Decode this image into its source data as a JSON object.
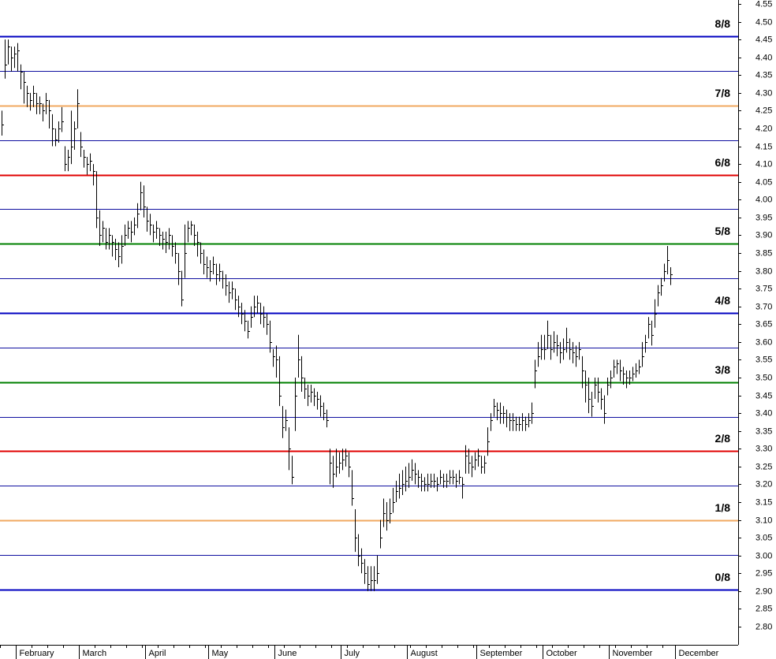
{
  "chart_data": {
    "type": "hlc",
    "color": "#000000",
    "ylim": [
      2.749,
      4.561
    ],
    "yticks": [
      {
        "value": 2.8,
        "label": "2.80"
      },
      2.85,
      {
        "value": 2.9,
        "label": "2.90"
      },
      2.95,
      {
        "value": 3,
        "label": "3.00"
      },
      3.05,
      {
        "value": 3.1,
        "label": "3.10"
      },
      3.15,
      {
        "value": 3.2,
        "label": "3.20"
      },
      3.25,
      {
        "value": 3.3,
        "label": "3.30"
      },
      3.35,
      {
        "value": 3.4,
        "label": "3.40"
      },
      3.45,
      {
        "value": 3.5,
        "label": "3.50"
      },
      3.55,
      {
        "value": 3.6,
        "label": "3.60"
      },
      3.65,
      {
        "value": 3.7,
        "label": "3.70"
      },
      3.75,
      {
        "value": 3.8,
        "label": "3.80"
      },
      3.85,
      {
        "value": 3.9,
        "label": "3.90"
      },
      3.95,
      {
        "value": 4,
        "label": "4.00"
      },
      4.05,
      {
        "value": 4.1,
        "label": "4.10"
      },
      4.15,
      {
        "value": 4.2,
        "label": "4.20"
      },
      4.25,
      {
        "value": 4.3,
        "label": "4.30"
      },
      4.35,
      {
        "value": 4.4,
        "label": "4.40"
      },
      4.45,
      {
        "value": 4.5,
        "label": "4.50"
      },
      4.55
    ],
    "levels": [
      {
        "label": "0/8",
        "value": 2.904,
        "color": "#0000c0"
      },
      {
        "label": "1/8",
        "value": 3.098,
        "color": "#f0a860"
      },
      {
        "label": "2/8",
        "value": 3.293,
        "color": "#e00000"
      },
      {
        "label": "3/8",
        "value": 3.487,
        "color": "#008000"
      },
      {
        "label": "4/8",
        "value": 3.682,
        "color": "#0000c0"
      },
      {
        "label": "5/8",
        "value": 3.876,
        "color": "#008000"
      },
      {
        "label": "6/8",
        "value": 4.07,
        "color": "#e00000"
      },
      {
        "label": "7/8",
        "value": 4.265,
        "color": "#f0a860"
      },
      {
        "label": "8/8",
        "value": 4.459,
        "color": "#0000c0"
      }
    ],
    "minor_levels": [
      3.001,
      3.196,
      3.39,
      3.584,
      3.779,
      3.973,
      4.167,
      4.362
    ],
    "minor_level_color": "#1010a0",
    "categories": [
      null,
      null,
      null,
      null,
      null,
      "February",
      null,
      null,
      null,
      null,
      null,
      null,
      null,
      null,
      null,
      null,
      null,
      null,
      null,
      null,
      null,
      null,
      null,
      null,
      null,
      "March",
      null,
      null,
      null,
      null,
      null,
      null,
      null,
      null,
      null,
      null,
      null,
      null,
      null,
      null,
      null,
      null,
      null,
      null,
      null,
      null,
      "April",
      null,
      null,
      null,
      null,
      null,
      null,
      null,
      null,
      null,
      null,
      null,
      null,
      null,
      null,
      null,
      null,
      null,
      null,
      null,
      "May",
      null,
      null,
      null,
      null,
      null,
      null,
      null,
      null,
      null,
      null,
      null,
      null,
      null,
      null,
      null,
      null,
      null,
      null,
      null,
      null,
      "June",
      null,
      null,
      null,
      null,
      null,
      null,
      null,
      null,
      null,
      null,
      null,
      null,
      null,
      null,
      null,
      null,
      null,
      null,
      null,
      null,
      "July",
      null,
      null,
      null,
      null,
      null,
      null,
      null,
      null,
      null,
      null,
      null,
      null,
      null,
      null,
      null,
      null,
      null,
      null,
      null,
      null,
      "August",
      null,
      null,
      null,
      null,
      null,
      null,
      null,
      null,
      null,
      null,
      null,
      null,
      null,
      null,
      null,
      null,
      null,
      null,
      null,
      null,
      null,
      "September",
      null,
      null,
      null,
      null,
      null,
      null,
      null,
      null,
      null,
      null,
      null,
      null,
      null,
      null,
      null,
      null,
      null,
      null,
      null,
      null,
      "October",
      null,
      null,
      null,
      null,
      null,
      null,
      null,
      null,
      null,
      null,
      null,
      null,
      null,
      null,
      null,
      null,
      null,
      null,
      null,
      null,
      "November",
      null,
      null,
      null,
      null,
      null,
      null,
      null,
      null,
      null,
      null,
      null,
      null,
      null,
      null,
      null,
      null,
      null,
      null,
      null,
      null,
      "December"
    ],
    "high": [
      4.25,
      4.45,
      4.45,
      4.43,
      4.43,
      4.44,
      4.38,
      4.36,
      4.32,
      4.3,
      4.32,
      4.3,
      4.29,
      4.27,
      4.3,
      4.28,
      4.24,
      4.2,
      4.22,
      4.26,
      4.15,
      4.14,
      4.25,
      4.22,
      4.31,
      4.19,
      4.14,
      4.12,
      4.13,
      4.1,
      4.08,
      3.97,
      3.94,
      3.92,
      3.92,
      3.9,
      3.89,
      3.88,
      3.9,
      3.93,
      3.94,
      3.94,
      3.95,
      3.99,
      4.05,
      4.04,
      3.98,
      3.96,
      3.93,
      3.94,
      3.92,
      3.91,
      3.91,
      3.92,
      3.9,
      3.88,
      3.85,
      3.8,
      3.93,
      3.94,
      3.94,
      3.93,
      3.91,
      3.88,
      3.86,
      3.84,
      3.83,
      3.84,
      3.82,
      3.82,
      3.8,
      3.79,
      3.77,
      3.77,
      3.75,
      3.73,
      3.71,
      3.69,
      3.66,
      3.7,
      3.73,
      3.73,
      3.71,
      3.7,
      3.68,
      3.66,
      3.58,
      3.59,
      3.56,
      3.42,
      3.41,
      3.36,
      3.28,
      3.5,
      3.62,
      3.56,
      3.5,
      3.48,
      3.48,
      3.47,
      3.46,
      3.45,
      3.43,
      3.41,
      3.3,
      3.28,
      3.3,
      3.29,
      3.3,
      3.3,
      3.29,
      3.24,
      3.13,
      3.06,
      3.02,
      2.99,
      2.97,
      2.97,
      2.97,
      3.0,
      3.1,
      3.16,
      3.15,
      3.16,
      3.19,
      3.21,
      3.23,
      3.24,
      3.25,
      3.26,
      3.27,
      3.26,
      3.24,
      3.23,
      3.22,
      3.23,
      3.23,
      3.23,
      3.22,
      3.24,
      3.23,
      3.23,
      3.24,
      3.24,
      3.23,
      3.24,
      3.22,
      3.31,
      3.3,
      3.28,
      3.29,
      3.3,
      3.28,
      3.28,
      3.36,
      3.4,
      3.44,
      3.43,
      3.43,
      3.42,
      3.41,
      3.4,
      3.4,
      3.39,
      3.39,
      3.4,
      3.39,
      3.4,
      3.43,
      3.55,
      3.6,
      3.62,
      3.62,
      3.66,
      3.62,
      3.63,
      3.62,
      3.6,
      3.61,
      3.64,
      3.61,
      3.6,
      3.59,
      3.6,
      3.56,
      3.52,
      3.5,
      3.46,
      3.5,
      3.5,
      3.47,
      3.45,
      3.5,
      3.52,
      3.55,
      3.55,
      3.55,
      3.53,
      3.52,
      3.52,
      3.53,
      3.54,
      3.55,
      3.6,
      3.62,
      3.67,
      3.66,
      3.72,
      3.76,
      3.78,
      3.82,
      3.87,
      3.81,
      null,
      null
    ],
    "low": [
      4.18,
      4.34,
      4.38,
      4.36,
      4.37,
      4.36,
      4.31,
      4.27,
      4.26,
      4.25,
      4.26,
      4.24,
      4.24,
      4.22,
      4.24,
      4.2,
      4.15,
      4.15,
      4.16,
      4.19,
      4.08,
      4.08,
      4.1,
      4.14,
      4.2,
      4.12,
      4.09,
      4.07,
      4.08,
      4.04,
      3.92,
      3.87,
      3.88,
      3.86,
      3.86,
      3.84,
      3.83,
      3.81,
      3.82,
      3.87,
      3.89,
      3.88,
      3.9,
      3.92,
      3.97,
      3.95,
      3.91,
      3.9,
      3.88,
      3.89,
      3.87,
      3.86,
      3.85,
      3.86,
      3.84,
      3.82,
      3.76,
      3.7,
      3.78,
      3.88,
      3.9,
      3.87,
      3.84,
      3.82,
      3.79,
      3.78,
      3.77,
      3.79,
      3.76,
      3.77,
      3.75,
      3.73,
      3.71,
      3.72,
      3.69,
      3.67,
      3.65,
      3.63,
      3.61,
      3.64,
      3.67,
      3.68,
      3.65,
      3.64,
      3.62,
      3.57,
      3.53,
      3.5,
      3.42,
      3.33,
      3.35,
      3.24,
      3.2,
      3.35,
      3.5,
      3.46,
      3.44,
      3.42,
      3.43,
      3.42,
      3.41,
      3.39,
      3.38,
      3.36,
      3.2,
      3.19,
      3.22,
      3.23,
      3.24,
      3.25,
      3.22,
      3.14,
      3.01,
      2.97,
      2.95,
      2.92,
      2.9,
      2.9,
      2.9,
      2.92,
      3.02,
      3.08,
      3.07,
      3.09,
      3.12,
      3.15,
      3.16,
      3.17,
      3.18,
      3.19,
      3.21,
      3.2,
      3.19,
      3.18,
      3.18,
      3.18,
      3.19,
      3.19,
      3.18,
      3.2,
      3.19,
      3.19,
      3.2,
      3.2,
      3.19,
      3.2,
      3.16,
      3.23,
      3.23,
      3.22,
      3.24,
      3.25,
      3.23,
      3.23,
      3.28,
      3.35,
      3.39,
      3.38,
      3.37,
      3.37,
      3.36,
      3.35,
      3.35,
      3.35,
      3.35,
      3.35,
      3.35,
      3.36,
      3.37,
      3.47,
      3.53,
      3.55,
      3.55,
      3.58,
      3.55,
      3.57,
      3.56,
      3.54,
      3.55,
      3.57,
      3.55,
      3.54,
      3.53,
      3.55,
      3.47,
      3.43,
      3.4,
      3.39,
      3.44,
      3.43,
      3.41,
      3.37,
      3.45,
      3.47,
      3.5,
      3.51,
      3.49,
      3.48,
      3.47,
      3.48,
      3.49,
      3.5,
      3.51,
      3.53,
      3.57,
      3.61,
      3.59,
      3.64,
      3.7,
      3.73,
      3.77,
      3.79,
      3.76,
      null,
      null
    ],
    "close": [
      4.21,
      4.38,
      4.43,
      4.4,
      4.41,
      4.42,
      4.36,
      4.33,
      4.3,
      4.28,
      4.3,
      4.27,
      4.27,
      4.25,
      4.28,
      4.25,
      4.2,
      4.17,
      4.2,
      4.22,
      4.1,
      4.12,
      4.15,
      4.2,
      4.27,
      4.15,
      4.12,
      4.1,
      4.11,
      4.08,
      3.95,
      3.9,
      3.92,
      3.88,
      3.9,
      3.88,
      3.86,
      3.84,
      3.87,
      3.9,
      3.92,
      3.91,
      3.93,
      3.96,
      4.02,
      3.98,
      3.94,
      3.93,
      3.91,
      3.92,
      3.9,
      3.89,
      3.88,
      3.9,
      3.87,
      3.85,
      3.8,
      3.72,
      3.85,
      3.92,
      3.93,
      3.9,
      3.88,
      3.85,
      3.82,
      3.81,
      3.8,
      3.82,
      3.79,
      3.8,
      3.78,
      3.76,
      3.74,
      3.75,
      3.72,
      3.7,
      3.68,
      3.66,
      3.63,
      3.67,
      3.7,
      3.71,
      3.68,
      3.67,
      3.65,
      3.6,
      3.56,
      3.55,
      3.45,
      3.36,
      3.38,
      3.3,
      3.22,
      3.45,
      3.55,
      3.5,
      3.47,
      3.45,
      3.46,
      3.45,
      3.44,
      3.42,
      3.4,
      3.38,
      3.26,
      3.23,
      3.25,
      3.26,
      3.27,
      3.28,
      3.25,
      3.16,
      3.05,
      3.0,
      2.98,
      2.95,
      2.92,
      2.93,
      2.93,
      2.95,
      3.05,
      3.12,
      3.1,
      3.12,
      3.15,
      3.18,
      3.19,
      3.2,
      3.21,
      3.22,
      3.24,
      3.23,
      3.22,
      3.21,
      3.2,
      3.2,
      3.21,
      3.21,
      3.2,
      3.22,
      3.21,
      3.21,
      3.22,
      3.22,
      3.21,
      3.22,
      3.2,
      3.28,
      3.26,
      3.25,
      3.27,
      3.28,
      3.25,
      3.26,
      3.32,
      3.38,
      3.42,
      3.41,
      3.4,
      3.4,
      3.39,
      3.38,
      3.38,
      3.37,
      3.37,
      3.38,
      3.37,
      3.38,
      3.4,
      3.52,
      3.56,
      3.58,
      3.58,
      3.62,
      3.58,
      3.6,
      3.59,
      3.57,
      3.58,
      3.6,
      3.58,
      3.57,
      3.56,
      3.58,
      3.52,
      3.48,
      3.44,
      3.42,
      3.48,
      3.46,
      3.44,
      3.4,
      3.48,
      3.5,
      3.53,
      3.54,
      3.52,
      3.51,
      3.5,
      3.5,
      3.51,
      3.52,
      3.53,
      3.56,
      3.6,
      3.65,
      3.62,
      3.68,
      3.74,
      3.76,
      3.8,
      3.83,
      3.79,
      null,
      null
    ]
  }
}
